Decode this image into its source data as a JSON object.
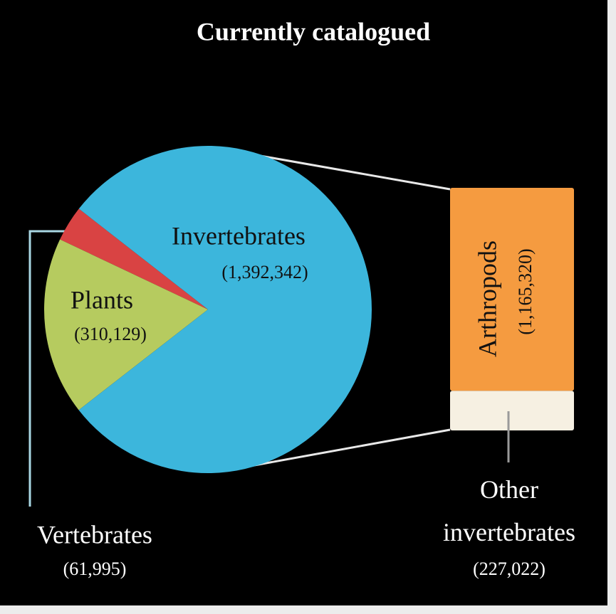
{
  "chart_data": {
    "type": "pie",
    "title": "Currently catalogued",
    "categories": [
      "Vertebrates",
      "Plants",
      "Invertebrates"
    ],
    "values": [
      61995,
      310129,
      1392342
    ],
    "value_labels": [
      "(61,995)",
      "(310,129)",
      "(1,392,342)"
    ],
    "colors": [
      "#d94343",
      "#b6cb5f",
      "#3cb6dc"
    ],
    "breakdown": {
      "categories": [
        "Arthropods",
        "Other invertebrates"
      ],
      "values": [
        1165320,
        227022
      ],
      "value_labels": [
        "(1,165,320)",
        "(227,022)"
      ],
      "colors": [
        "#f59b40",
        "#f6f0e2"
      ]
    }
  }
}
